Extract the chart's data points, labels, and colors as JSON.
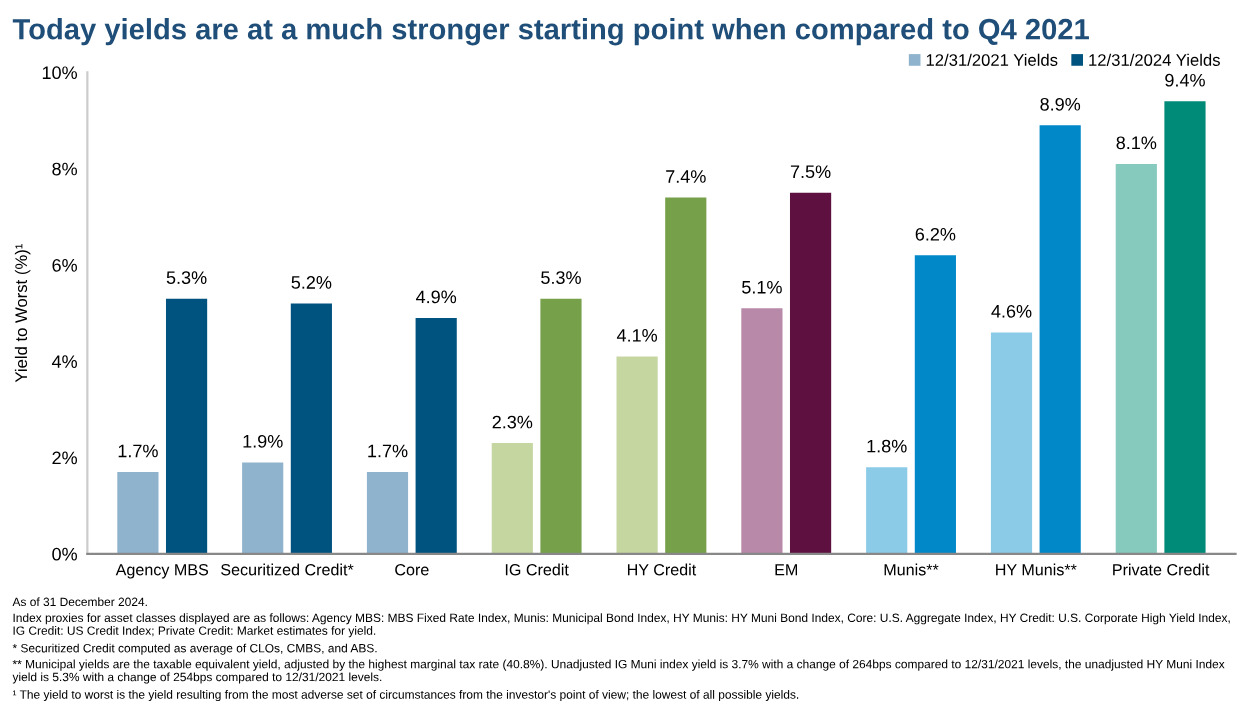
{
  "chart_data": {
    "type": "bar",
    "title": "Today yields are at a much stronger starting point when compared to Q4 2021",
    "ylabel": "Yield to Worst (%)¹",
    "categories": [
      "Agency MBS",
      "Securitized Credit*",
      "Core",
      "IG Credit",
      "HY Credit",
      "EM",
      "Munis**",
      "HY Munis**",
      "Private Credit"
    ],
    "series": [
      {
        "name": "12/31/2021 Yields",
        "color": "#8fb3cc",
        "colors": [
          "#8fb3cc",
          "#8fb3cc",
          "#8fb3cc",
          "#c5d6a0",
          "#c5d6a0",
          "#b889a8",
          "#8ccbe8",
          "#8ccbe8",
          "#86c9bd"
        ],
        "values": [
          1.7,
          1.9,
          1.7,
          2.3,
          4.1,
          5.1,
          1.8,
          4.6,
          8.1
        ],
        "value_labels": [
          "1.7%",
          "1.9%",
          "1.7%",
          "2.3%",
          "4.1%",
          "5.1%",
          "1.8%",
          "4.6%",
          "8.1%"
        ]
      },
      {
        "name": "12/31/2024 Yields",
        "color": "#00527f",
        "colors": [
          "#00527f",
          "#00527f",
          "#00527f",
          "#76a04a",
          "#76a04a",
          "#5e1040",
          "#0088c8",
          "#0088c8",
          "#008b78"
        ],
        "values": [
          5.3,
          5.2,
          4.9,
          5.3,
          7.4,
          7.5,
          6.2,
          8.9,
          9.4
        ],
        "value_labels": [
          "5.3%",
          "5.2%",
          "4.9%",
          "5.3%",
          "7.4%",
          "7.5%",
          "6.2%",
          "8.9%",
          "9.4%"
        ]
      }
    ],
    "ylim": [
      0,
      10
    ],
    "yticks": [
      {
        "value": 0,
        "label": "0%"
      },
      {
        "value": 2,
        "label": "2%"
      },
      {
        "value": 4,
        "label": "4%"
      },
      {
        "value": 6,
        "label": "6%"
      },
      {
        "value": 8,
        "label": "8%"
      },
      {
        "value": 10,
        "label": "10%"
      }
    ],
    "grid": false,
    "legend": "top right",
    "annotations": [
      "As of 31 December 2024.",
      "Index proxies for asset classes displayed are as follows: Agency MBS: MBS Fixed Rate Index, Munis: Municipal Bond Index, HY Munis: HY Muni Bond Index, Core: U.S. Aggregate Index, HY Credit: U.S. Corporate High Yield Index, IG Credit: US Credit Index; Private Credit: Market estimates for yield.",
      "* Securitized Credit computed as average of CLOs, CMBS, and ABS.",
      "** Municipal yields are the taxable equivalent yield, adjusted by the highest marginal tax rate (40.8%). Unadjusted IG Muni index yield is 3.7% with a change of 264bps compared to 12/31/2021 levels, the unadjusted HY Muni Index yield is 5.3% with a change of 254bps compared to 12/31/2021 levels.",
      "¹ The yield to worst is the yield resulting from the most adverse set of circumstances from the investor's point of view; the lowest of all possible yields."
    ]
  }
}
